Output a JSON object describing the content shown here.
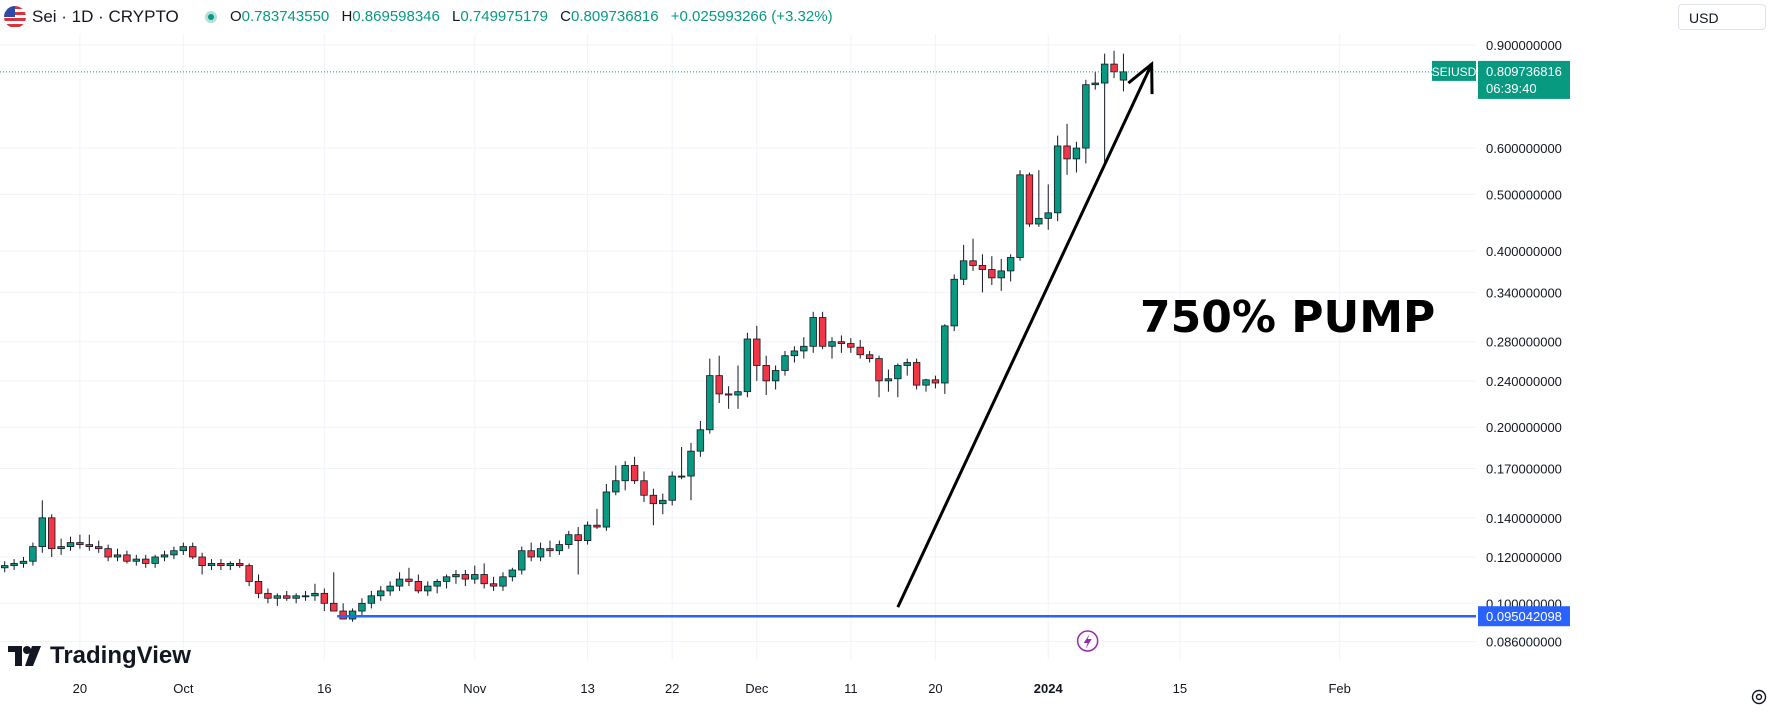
{
  "header": {
    "symbol": "Sei · 1D · CRYPTO",
    "ohlc": [
      {
        "label": "O",
        "value": "0.783743550"
      },
      {
        "label": "H",
        "value": "0.869598346"
      },
      {
        "label": "L",
        "value": "0.749975179"
      },
      {
        "label": "C",
        "value": "0.809736816"
      }
    ],
    "change": "+0.025993266 (+3.32%)",
    "currency": "USD",
    "logo": "TradingView"
  },
  "colors": {
    "up": "#089981",
    "down": "#f23645",
    "grid": "#f0f3fa",
    "support_line": "#2962ff",
    "price_tag": "#089981",
    "arrow": "#000000"
  },
  "chart_data": {
    "type": "candlestick",
    "title": "",
    "xlabel": "",
    "ylabel": "",
    "y_scale": "log",
    "ylim": [
      0.08,
      0.94
    ],
    "xlim": [
      "2023-09-12",
      "2024-02-16"
    ],
    "y_ticks": [
      "0.900000000",
      "0.600000000",
      "0.500000000",
      "0.400000000",
      "0.340000000",
      "0.280000000",
      "0.240000000",
      "0.200000000",
      "0.170000000",
      "0.140000000",
      "0.120000000",
      "0.100000000",
      "0.086000000"
    ],
    "x_ticks": [
      {
        "date": "2023-09-20",
        "label": "20"
      },
      {
        "date": "2023-10-01",
        "label": "Oct"
      },
      {
        "date": "2023-10-16",
        "label": "16"
      },
      {
        "date": "2023-11-01",
        "label": "Nov"
      },
      {
        "date": "2023-11-13",
        "label": "13"
      },
      {
        "date": "2023-11-22",
        "label": "22"
      },
      {
        "date": "2023-12-01",
        "label": "Dec"
      },
      {
        "date": "2023-12-11",
        "label": "11"
      },
      {
        "date": "2023-12-20",
        "label": "20"
      },
      {
        "date": "2024-01-01",
        "label": "2024"
      },
      {
        "date": "2024-01-15",
        "label": "15"
      },
      {
        "date": "2024-02-01",
        "label": "Feb"
      }
    ],
    "start_date": "2023-09-12",
    "candles": [
      [
        0.115,
        0.118,
        0.113,
        0.116
      ],
      [
        0.116,
        0.119,
        0.114,
        0.117
      ],
      [
        0.117,
        0.12,
        0.115,
        0.118
      ],
      [
        0.118,
        0.127,
        0.116,
        0.125
      ],
      [
        0.125,
        0.15,
        0.122,
        0.14
      ],
      [
        0.14,
        0.142,
        0.12,
        0.124
      ],
      [
        0.124,
        0.129,
        0.121,
        0.125
      ],
      [
        0.125,
        0.13,
        0.123,
        0.127
      ],
      [
        0.127,
        0.131,
        0.124,
        0.126
      ],
      [
        0.126,
        0.131,
        0.123,
        0.125
      ],
      [
        0.125,
        0.128,
        0.122,
        0.124
      ],
      [
        0.124,
        0.126,
        0.118,
        0.12
      ],
      [
        0.12,
        0.124,
        0.118,
        0.121
      ],
      [
        0.121,
        0.123,
        0.117,
        0.118
      ],
      [
        0.118,
        0.121,
        0.116,
        0.119
      ],
      [
        0.119,
        0.121,
        0.115,
        0.117
      ],
      [
        0.117,
        0.121,
        0.115,
        0.12
      ],
      [
        0.12,
        0.123,
        0.118,
        0.121
      ],
      [
        0.121,
        0.125,
        0.119,
        0.123
      ],
      [
        0.123,
        0.127,
        0.121,
        0.125
      ],
      [
        0.125,
        0.127,
        0.119,
        0.12
      ],
      [
        0.12,
        0.122,
        0.112,
        0.116
      ],
      [
        0.116,
        0.119,
        0.114,
        0.117
      ],
      [
        0.117,
        0.119,
        0.114,
        0.116
      ],
      [
        0.116,
        0.118,
        0.114,
        0.117
      ],
      [
        0.117,
        0.119,
        0.115,
        0.116
      ],
      [
        0.116,
        0.117,
        0.107,
        0.109
      ],
      [
        0.109,
        0.112,
        0.102,
        0.104
      ],
      [
        0.104,
        0.106,
        0.1,
        0.102
      ],
      [
        0.102,
        0.104,
        0.099,
        0.103
      ],
      [
        0.103,
        0.105,
        0.101,
        0.102
      ],
      [
        0.102,
        0.104,
        0.1,
        0.103
      ],
      [
        0.103,
        0.105,
        0.101,
        0.103
      ],
      [
        0.103,
        0.108,
        0.101,
        0.104
      ],
      [
        0.104,
        0.106,
        0.097,
        0.1
      ],
      [
        0.1,
        0.113,
        0.097,
        0.097
      ],
      [
        0.097,
        0.1,
        0.095,
        0.094
      ],
      [
        0.094,
        0.098,
        0.093,
        0.097
      ],
      [
        0.097,
        0.102,
        0.095,
        0.1
      ],
      [
        0.1,
        0.105,
        0.098,
        0.103
      ],
      [
        0.103,
        0.107,
        0.101,
        0.105
      ],
      [
        0.105,
        0.109,
        0.103,
        0.107
      ],
      [
        0.107,
        0.113,
        0.105,
        0.11
      ],
      [
        0.11,
        0.115,
        0.107,
        0.109
      ],
      [
        0.109,
        0.112,
        0.104,
        0.105
      ],
      [
        0.105,
        0.109,
        0.103,
        0.107
      ],
      [
        0.107,
        0.11,
        0.104,
        0.109
      ],
      [
        0.109,
        0.112,
        0.106,
        0.111
      ],
      [
        0.111,
        0.114,
        0.108,
        0.112
      ],
      [
        0.112,
        0.114,
        0.107,
        0.11
      ],
      [
        0.11,
        0.116,
        0.108,
        0.112
      ],
      [
        0.112,
        0.117,
        0.106,
        0.108
      ],
      [
        0.108,
        0.111,
        0.105,
        0.107
      ],
      [
        0.107,
        0.113,
        0.105,
        0.111
      ],
      [
        0.111,
        0.115,
        0.109,
        0.114
      ],
      [
        0.114,
        0.125,
        0.112,
        0.123
      ],
      [
        0.123,
        0.127,
        0.118,
        0.12
      ],
      [
        0.12,
        0.127,
        0.118,
        0.124
      ],
      [
        0.124,
        0.128,
        0.12,
        0.123
      ],
      [
        0.123,
        0.128,
        0.121,
        0.126
      ],
      [
        0.126,
        0.133,
        0.124,
        0.131
      ],
      [
        0.131,
        0.135,
        0.112,
        0.128
      ],
      [
        0.128,
        0.138,
        0.126,
        0.136
      ],
      [
        0.136,
        0.145,
        0.134,
        0.135
      ],
      [
        0.135,
        0.16,
        0.133,
        0.155
      ],
      [
        0.155,
        0.172,
        0.153,
        0.162
      ],
      [
        0.162,
        0.175,
        0.156,
        0.172
      ],
      [
        0.172,
        0.178,
        0.16,
        0.162
      ],
      [
        0.162,
        0.168,
        0.149,
        0.153
      ],
      [
        0.153,
        0.157,
        0.136,
        0.148
      ],
      [
        0.148,
        0.154,
        0.142,
        0.15
      ],
      [
        0.15,
        0.168,
        0.147,
        0.165
      ],
      [
        0.165,
        0.185,
        0.163,
        0.165
      ],
      [
        0.165,
        0.188,
        0.15,
        0.182
      ],
      [
        0.182,
        0.205,
        0.178,
        0.198
      ],
      [
        0.198,
        0.262,
        0.195,
        0.245
      ],
      [
        0.245,
        0.265,
        0.22,
        0.228
      ],
      [
        0.228,
        0.235,
        0.215,
        0.227
      ],
      [
        0.227,
        0.255,
        0.215,
        0.23
      ],
      [
        0.23,
        0.29,
        0.225,
        0.283
      ],
      [
        0.283,
        0.298,
        0.24,
        0.255
      ],
      [
        0.255,
        0.265,
        0.227,
        0.24
      ],
      [
        0.24,
        0.255,
        0.232,
        0.25
      ],
      [
        0.25,
        0.27,
        0.245,
        0.265
      ],
      [
        0.265,
        0.275,
        0.258,
        0.27
      ],
      [
        0.27,
        0.285,
        0.262,
        0.275
      ],
      [
        0.275,
        0.315,
        0.268,
        0.308
      ],
      [
        0.308,
        0.315,
        0.272,
        0.275
      ],
      [
        0.275,
        0.285,
        0.262,
        0.28
      ],
      [
        0.28,
        0.287,
        0.268,
        0.278
      ],
      [
        0.278,
        0.284,
        0.268,
        0.274
      ],
      [
        0.274,
        0.282,
        0.262,
        0.266
      ],
      [
        0.266,
        0.27,
        0.258,
        0.262
      ],
      [
        0.262,
        0.265,
        0.225,
        0.24
      ],
      [
        0.24,
        0.251,
        0.23,
        0.242
      ],
      [
        0.242,
        0.257,
        0.225,
        0.255
      ],
      [
        0.255,
        0.262,
        0.245,
        0.258
      ],
      [
        0.258,
        0.262,
        0.232,
        0.236
      ],
      [
        0.236,
        0.242,
        0.23,
        0.241
      ],
      [
        0.241,
        0.245,
        0.233,
        0.238
      ],
      [
        0.238,
        0.3,
        0.228,
        0.298
      ],
      [
        0.298,
        0.365,
        0.292,
        0.358
      ],
      [
        0.358,
        0.41,
        0.35,
        0.385
      ],
      [
        0.385,
        0.42,
        0.37,
        0.378
      ],
      [
        0.378,
        0.395,
        0.34,
        0.372
      ],
      [
        0.372,
        0.392,
        0.35,
        0.36
      ],
      [
        0.36,
        0.388,
        0.342,
        0.37
      ],
      [
        0.37,
        0.395,
        0.355,
        0.39
      ],
      [
        0.39,
        0.55,
        0.385,
        0.54
      ],
      [
        0.54,
        0.545,
        0.44,
        0.445
      ],
      [
        0.445,
        0.55,
        0.44,
        0.455
      ],
      [
        0.455,
        0.52,
        0.435,
        0.465
      ],
      [
        0.465,
        0.63,
        0.45,
        0.605
      ],
      [
        0.605,
        0.66,
        0.54,
        0.575
      ],
      [
        0.575,
        0.615,
        0.545,
        0.6
      ],
      [
        0.6,
        0.785,
        0.565,
        0.77
      ],
      [
        0.77,
        0.81,
        0.755,
        0.775
      ],
      [
        0.775,
        0.87,
        0.565,
        0.835
      ],
      [
        0.835,
        0.88,
        0.79,
        0.81
      ],
      [
        0.784,
        0.87,
        0.75,
        0.81
      ]
    ],
    "last_price": {
      "symbol": "SEIUSD",
      "price": "0.809736816",
      "countdown": "06:39:40"
    },
    "support": {
      "price": "0.095042098",
      "start_date": "2023-10-18"
    },
    "annotation": {
      "text": "750% PUMP",
      "arrow_from": {
        "date": "2023-12-16",
        "price": 0.0985
      },
      "arrow_to": {
        "date": "2024-01-12",
        "price": 0.835
      }
    }
  }
}
